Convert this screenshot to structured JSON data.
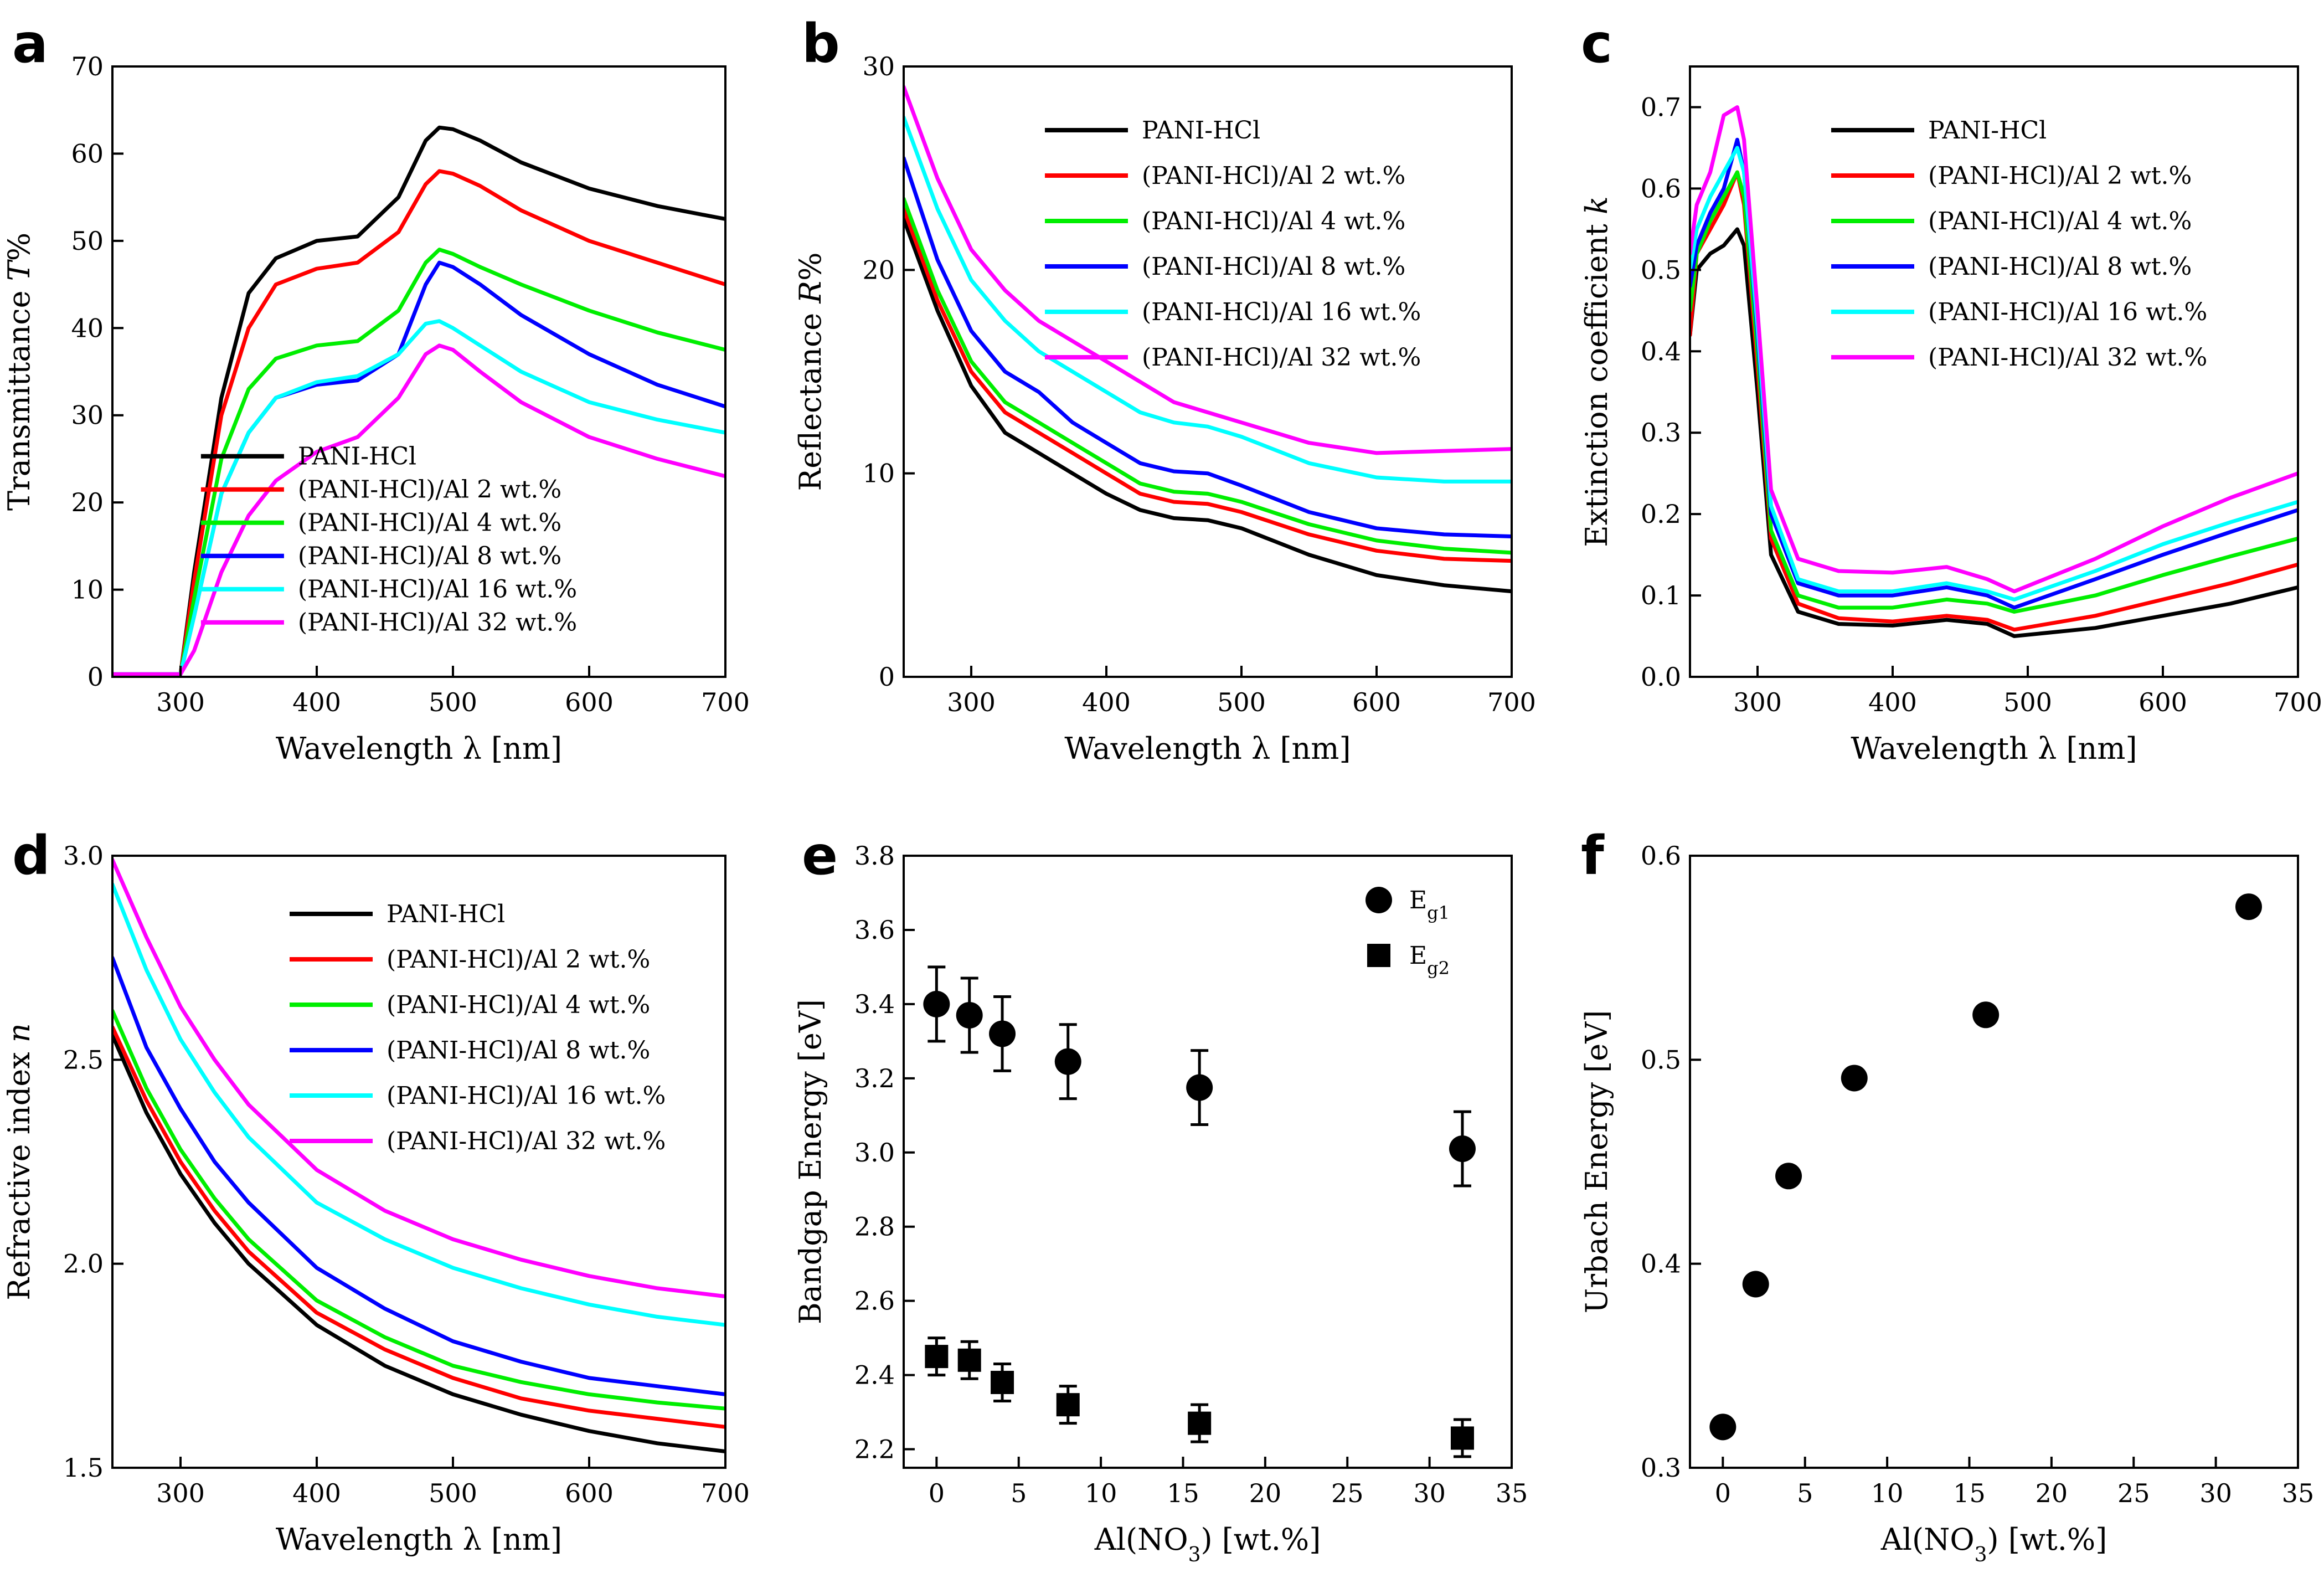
{
  "chart_data": [
    {
      "panel": "a",
      "type": "line",
      "xlabel": "Wavelength λ [nm]",
      "ylabel_prefix": "Transmittance ",
      "ylabel_italic": "T",
      "ylabel_suffix": "%",
      "xlim": [
        250,
        700
      ],
      "ylim": [
        0,
        70
      ],
      "xticks": [
        300,
        400,
        500,
        600,
        700
      ],
      "yticks": [
        0,
        10,
        20,
        30,
        40,
        50,
        60,
        70
      ],
      "legend_position": "lower-right",
      "x": [
        250,
        300,
        310,
        330,
        350,
        370,
        400,
        430,
        460,
        480,
        490,
        500,
        520,
        550,
        600,
        650,
        700
      ],
      "series": [
        {
          "name": "PANI-HCl",
          "color": "#000000",
          "values": [
            0.3,
            0.3,
            12,
            32,
            44,
            48,
            50,
            50.5,
            55,
            61.5,
            63,
            62.8,
            61.5,
            59,
            56,
            54,
            52.5
          ]
        },
        {
          "name": "(PANI-HCl)/Al 2 wt.%",
          "color": "#ff0000",
          "values": [
            0.3,
            0.3,
            11,
            30,
            40,
            45,
            46.8,
            47.5,
            51,
            56.5,
            58,
            57.7,
            56.3,
            53.5,
            50,
            47.5,
            45
          ]
        },
        {
          "name": "(PANI-HCl)/Al 4 wt.%",
          "color": "#00ee00",
          "values": [
            0.3,
            0.3,
            9,
            25,
            33,
            36.5,
            38,
            38.5,
            42,
            47.5,
            49,
            48.5,
            47,
            45,
            42,
            39.5,
            37.5
          ]
        },
        {
          "name": "(PANI-HCl)/Al 8 wt.%",
          "color": "#0000ff",
          "values": [
            0.3,
            0.3,
            7,
            21,
            28,
            32,
            33.5,
            34,
            37,
            45,
            47.5,
            47,
            45,
            41.5,
            37,
            33.5,
            31
          ]
        },
        {
          "name": "(PANI-HCl)/Al 16 wt.%",
          "color": "#00ffff",
          "values": [
            0.3,
            0.3,
            7,
            21,
            28,
            32,
            33.8,
            34.5,
            37,
            40.5,
            40.8,
            40,
            38,
            35,
            31.5,
            29.5,
            28
          ]
        },
        {
          "name": "(PANI-HCl)/Al 32 wt.%",
          "color": "#ff00ff",
          "values": [
            0.3,
            0.3,
            3,
            12,
            18.5,
            22.5,
            25.8,
            27.5,
            32,
            37,
            38,
            37.5,
            35,
            31.5,
            27.5,
            25,
            23
          ]
        }
      ]
    },
    {
      "panel": "b",
      "type": "line",
      "xlabel": "Wavelength λ [nm]",
      "ylabel_prefix": "Reflectance ",
      "ylabel_italic": "R",
      "ylabel_suffix": "%",
      "xlim": [
        250,
        700
      ],
      "ylim": [
        0,
        30
      ],
      "xticks": [
        300,
        400,
        500,
        600,
        700
      ],
      "yticks": [
        0,
        10,
        20,
        30
      ],
      "legend_position": "top-right",
      "x": [
        250,
        275,
        300,
        325,
        350,
        375,
        400,
        425,
        450,
        475,
        500,
        550,
        600,
        650,
        700
      ],
      "series": [
        {
          "name": "PANI-HCl",
          "color": "#000000",
          "values": [
            22.5,
            18,
            14.3,
            12,
            11,
            10,
            9,
            8.2,
            7.8,
            7.7,
            7.3,
            6,
            5,
            4.5,
            4.2
          ]
        },
        {
          "name": "(PANI-HCl)/Al 2 wt.%",
          "color": "#ff0000",
          "values": [
            23,
            18.5,
            15,
            13,
            12,
            11,
            10,
            9,
            8.6,
            8.5,
            8.1,
            7,
            6.2,
            5.8,
            5.7
          ]
        },
        {
          "name": "(PANI-HCl)/Al 4 wt.%",
          "color": "#00ee00",
          "values": [
            23.5,
            19,
            15.5,
            13.5,
            12.5,
            11.5,
            10.5,
            9.5,
            9.1,
            9,
            8.6,
            7.5,
            6.7,
            6.3,
            6.1
          ]
        },
        {
          "name": "(PANI-HCl)/Al 8 wt.%",
          "color": "#0000ff",
          "values": [
            25.5,
            20.5,
            17,
            15,
            14,
            12.5,
            11.5,
            10.5,
            10.1,
            10,
            9.4,
            8.1,
            7.3,
            7,
            6.9
          ]
        },
        {
          "name": "(PANI-HCl)/Al 16 wt.%",
          "color": "#00ffff",
          "values": [
            27.5,
            23,
            19.5,
            17.5,
            16,
            15,
            14,
            13,
            12.5,
            12.3,
            11.8,
            10.5,
            9.8,
            9.6,
            9.6
          ]
        },
        {
          "name": "(PANI-HCl)/Al 32 wt.%",
          "color": "#ff00ff",
          "values": [
            29,
            24.5,
            21,
            19,
            17.5,
            16.5,
            15.5,
            14.5,
            13.5,
            13,
            12.5,
            11.5,
            11,
            11.1,
            11.2
          ]
        }
      ]
    },
    {
      "panel": "c",
      "type": "line",
      "xlabel": "Wavelength λ [nm]",
      "ylabel_prefix": "Extinction coefficient ",
      "ylabel_italic": "k",
      "ylabel_suffix": "",
      "xlim": [
        250,
        700
      ],
      "ylim": [
        0,
        0.75
      ],
      "xticks": [
        300,
        400,
        500,
        600,
        700
      ],
      "yticks": [
        0.0,
        0.1,
        0.2,
        0.3,
        0.4,
        0.5,
        0.6,
        0.7
      ],
      "legend_position": "top-right",
      "x": [
        250,
        255,
        265,
        275,
        285,
        290,
        300,
        310,
        330,
        360,
        400,
        440,
        470,
        490,
        550,
        600,
        650,
        700
      ],
      "series": [
        {
          "name": "PANI-HCl",
          "color": "#000000",
          "values": [
            0.42,
            0.5,
            0.52,
            0.53,
            0.55,
            0.53,
            0.35,
            0.15,
            0.08,
            0.065,
            0.063,
            0.07,
            0.065,
            0.05,
            0.06,
            0.075,
            0.09,
            0.11
          ]
        },
        {
          "name": "(PANI-HCl)/Al 2 wt.%",
          "color": "#ff0000",
          "values": [
            0.42,
            0.52,
            0.55,
            0.58,
            0.62,
            0.58,
            0.38,
            0.17,
            0.09,
            0.072,
            0.068,
            0.075,
            0.07,
            0.058,
            0.075,
            0.095,
            0.115,
            0.138
          ]
        },
        {
          "name": "(PANI-HCl)/Al 4 wt.%",
          "color": "#00ee00",
          "values": [
            0.45,
            0.52,
            0.56,
            0.59,
            0.62,
            0.59,
            0.4,
            0.18,
            0.1,
            0.085,
            0.085,
            0.095,
            0.09,
            0.08,
            0.1,
            0.125,
            0.148,
            0.17
          ]
        },
        {
          "name": "(PANI-HCl)/Al 8 wt.%",
          "color": "#0000ff",
          "values": [
            0.48,
            0.53,
            0.57,
            0.6,
            0.66,
            0.62,
            0.42,
            0.2,
            0.115,
            0.1,
            0.1,
            0.11,
            0.1,
            0.085,
            0.12,
            0.15,
            0.178,
            0.205
          ]
        },
        {
          "name": "(PANI-HCl)/Al 16 wt.%",
          "color": "#00ffff",
          "values": [
            0.5,
            0.55,
            0.59,
            0.62,
            0.65,
            0.62,
            0.43,
            0.21,
            0.12,
            0.105,
            0.105,
            0.115,
            0.105,
            0.095,
            0.13,
            0.163,
            0.19,
            0.215
          ]
        },
        {
          "name": "(PANI-HCl)/Al 32 wt.%",
          "color": "#ff00ff",
          "values": [
            0.52,
            0.58,
            0.62,
            0.69,
            0.7,
            0.66,
            0.45,
            0.23,
            0.145,
            0.13,
            0.128,
            0.135,
            0.12,
            0.105,
            0.145,
            0.185,
            0.22,
            0.25
          ]
        }
      ]
    },
    {
      "panel": "d",
      "type": "line",
      "xlabel": "Wavelength λ [nm]",
      "ylabel_prefix": "Refractive index ",
      "ylabel_italic": "n",
      "ylabel_suffix": "",
      "xlim": [
        250,
        700
      ],
      "ylim": [
        1.5,
        3.0
      ],
      "xticks": [
        300,
        400,
        500,
        600,
        700
      ],
      "yticks": [
        1.5,
        2.0,
        2.5,
        3.0
      ],
      "legend_position": "top-right",
      "x": [
        250,
        275,
        300,
        325,
        350,
        400,
        450,
        500,
        550,
        600,
        650,
        700
      ],
      "series": [
        {
          "name": "PANI-HCl",
          "color": "#000000",
          "values": [
            2.56,
            2.37,
            2.22,
            2.1,
            2.0,
            1.85,
            1.75,
            1.68,
            1.63,
            1.59,
            1.56,
            1.54
          ]
        },
        {
          "name": "(PANI-HCl)/Al 2 wt.%",
          "color": "#ff0000",
          "values": [
            2.58,
            2.4,
            2.25,
            2.13,
            2.03,
            1.88,
            1.79,
            1.72,
            1.67,
            1.64,
            1.62,
            1.6
          ]
        },
        {
          "name": "(PANI-HCl)/Al 4 wt.%",
          "color": "#00ee00",
          "values": [
            2.62,
            2.43,
            2.28,
            2.16,
            2.06,
            1.91,
            1.82,
            1.75,
            1.71,
            1.68,
            1.66,
            1.645
          ]
        },
        {
          "name": "(PANI-HCl)/Al 8 wt.%",
          "color": "#0000ff",
          "values": [
            2.75,
            2.53,
            2.38,
            2.25,
            2.15,
            1.99,
            1.89,
            1.81,
            1.76,
            1.72,
            1.7,
            1.68
          ]
        },
        {
          "name": "(PANI-HCl)/Al 16 wt.%",
          "color": "#00ffff",
          "values": [
            2.93,
            2.72,
            2.55,
            2.42,
            2.31,
            2.15,
            2.06,
            1.99,
            1.94,
            1.9,
            1.87,
            1.85
          ]
        },
        {
          "name": "(PANI-HCl)/Al 32 wt.%",
          "color": "#ff00ff",
          "values": [
            2.99,
            2.8,
            2.63,
            2.5,
            2.39,
            2.23,
            2.13,
            2.06,
            2.01,
            1.97,
            1.94,
            1.92
          ]
        }
      ]
    },
    {
      "panel": "e",
      "type": "scatter",
      "xlabel_main": "Al(NO",
      "xlabel_sub": "3",
      "xlabel_tail": "[wt.%]",
      "ylabel": "Bandgap Energy [eV]",
      "xlim": [
        -2,
        35
      ],
      "ylim": [
        2.15,
        3.8
      ],
      "xticks": [
        0,
        5,
        10,
        15,
        20,
        25,
        30,
        35
      ],
      "yticks": [
        2.2,
        2.4,
        2.6,
        2.8,
        3.0,
        3.2,
        3.4,
        3.6,
        3.8
      ],
      "legend_position": "top-right",
      "series": [
        {
          "name_main": "E",
          "name_sub": "g1",
          "marker": "circle",
          "x": [
            0,
            2,
            4,
            8,
            16,
            32
          ],
          "values": [
            3.4,
            3.37,
            3.32,
            3.245,
            3.175,
            3.01
          ],
          "errors": [
            0.1,
            0.1,
            0.1,
            0.1,
            0.1,
            0.1
          ]
        },
        {
          "name_main": "E",
          "name_sub": "g2",
          "marker": "square",
          "x": [
            0,
            2,
            4,
            8,
            16,
            32
          ],
          "values": [
            2.45,
            2.44,
            2.38,
            2.32,
            2.27,
            2.23
          ],
          "errors": [
            0.05,
            0.05,
            0.05,
            0.05,
            0.05,
            0.05
          ]
        }
      ]
    },
    {
      "panel": "f",
      "type": "scatter",
      "xlabel_main": "Al(NO",
      "xlabel_sub": "3",
      "xlabel_tail": "[wt.%]",
      "ylabel": "Urbach Energy [eV]",
      "xlim": [
        -2,
        35
      ],
      "ylim": [
        0.3,
        0.6
      ],
      "xticks": [
        0,
        5,
        10,
        15,
        20,
        25,
        30,
        35
      ],
      "yticks": [
        0.3,
        0.4,
        0.5,
        0.6
      ],
      "series": [
        {
          "name": "Urbach energy",
          "marker": "circle",
          "x": [
            0,
            2,
            4,
            8,
            16,
            32
          ],
          "values": [
            0.32,
            0.39,
            0.443,
            0.491,
            0.522,
            0.575
          ]
        }
      ]
    }
  ]
}
